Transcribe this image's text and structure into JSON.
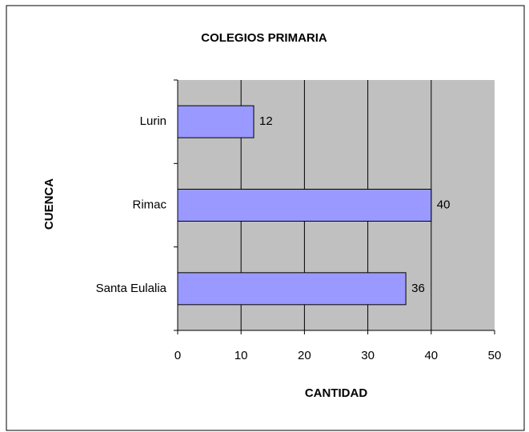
{
  "chart_data": {
    "type": "bar",
    "orientation": "horizontal",
    "title": "COLEGIOS PRIMARIA",
    "x_label": "CANTIDAD",
    "y_label": "CUENCA",
    "categories": [
      "Lurin",
      "Rimac",
      "Santa Eulalia"
    ],
    "values": [
      12,
      40,
      36
    ],
    "color": "#9999ff",
    "xlim": [
      0,
      50
    ],
    "xticks": [
      0,
      10,
      20,
      30,
      40,
      50
    ],
    "grid": true
  }
}
